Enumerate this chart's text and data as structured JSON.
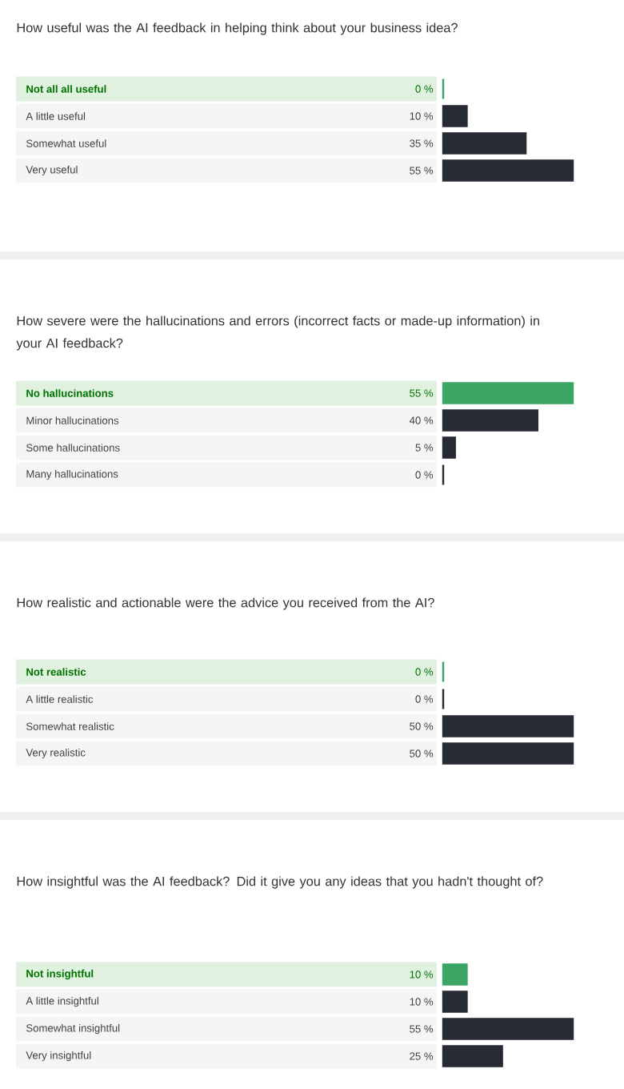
{
  "chart_data": [
    {
      "type": "bar",
      "orientation": "horizontal",
      "title": "How useful was the AI feedback in helping think about your business idea?",
      "categories": [
        "Not all all useful",
        "A little useful",
        "Somewhat useful",
        "Very useful"
      ],
      "values": [
        0,
        10,
        35,
        55
      ],
      "colors": [
        "#3aa564",
        "#262b33",
        "#262b33",
        "#262b33"
      ],
      "value_labels": [
        "0 %",
        "10 %",
        "35 %",
        "55 %"
      ]
    },
    {
      "type": "bar",
      "orientation": "horizontal",
      "title": "How severe were the hallucinations and errors (incorrect facts or made-up information) in your AI feedback?",
      "categories": [
        "No hallucinations",
        "Minor hallucinations",
        "Some hallucinations",
        "Many hallucinations"
      ],
      "values": [
        55,
        40,
        5,
        0
      ],
      "colors": [
        "#3aa564",
        "#262b33",
        "#262b33",
        "#262b33"
      ],
      "value_labels": [
        "55 %",
        "40 %",
        "5 %",
        "0 %"
      ]
    },
    {
      "type": "bar",
      "orientation": "horizontal",
      "title": "How realistic and actionable were the advice you received from the AI?",
      "categories": [
        "Not realistic",
        "A little realistic",
        "Somewhat realistic",
        "Very realistic"
      ],
      "values": [
        0,
        0,
        50,
        50
      ],
      "colors": [
        "#3aa564",
        "#262b33",
        "#262b33",
        "#262b33"
      ],
      "value_labels": [
        "0 %",
        "0 %",
        "50 %",
        "50 %"
      ]
    },
    {
      "type": "bar",
      "orientation": "horizontal",
      "title": "How insightful was the AI feedback? Did it give you any ideas that you hadn't thought of?",
      "categories": [
        "Not insightful",
        "A little insightful",
        "Somewhat insightful",
        "Very insightful"
      ],
      "values": [
        10,
        10,
        55,
        25
      ],
      "colors": [
        "#3aa564",
        "#262b33",
        "#262b33",
        "#262b33"
      ],
      "value_labels": [
        "10 %",
        "10 %",
        "55 %",
        "25 %"
      ]
    }
  ]
}
